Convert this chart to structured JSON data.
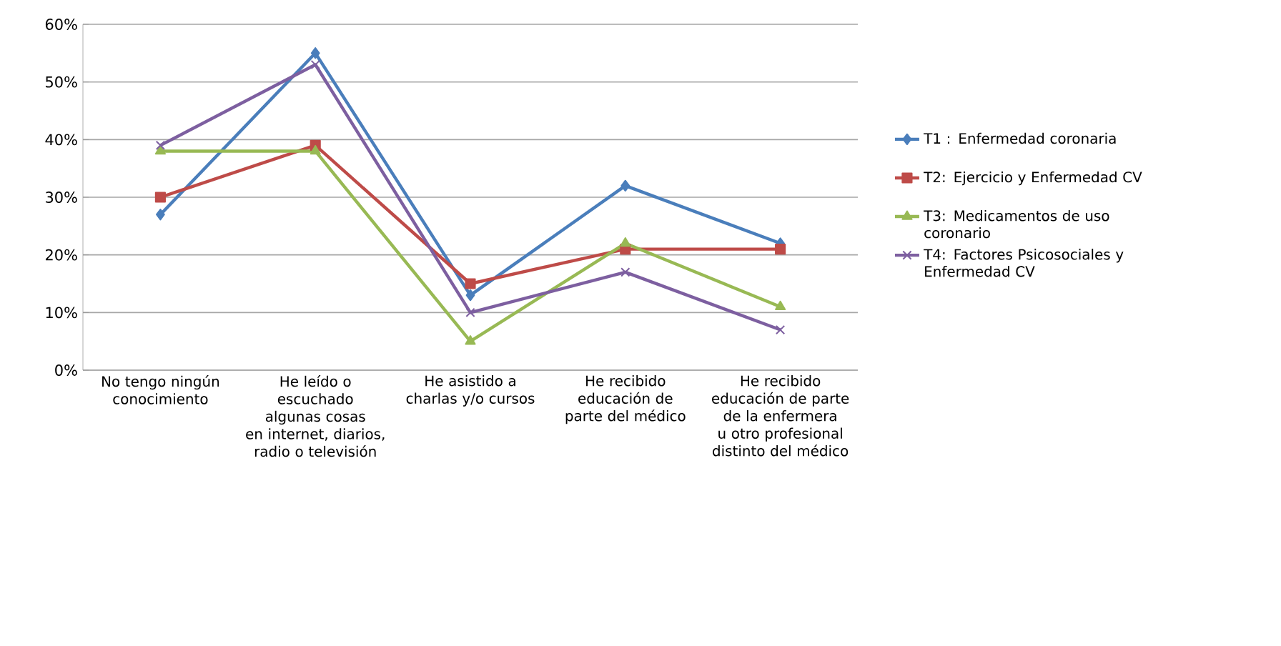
{
  "chart_data": {
    "type": "line",
    "categories": [
      "No tengo ningún conocimiento",
      "He leído o escuchado algunas cosas en internet, diarios, radio o televisión",
      "He asistido a charlas y/o cursos",
      "He recibido educación de parte del médico",
      "He recibido educación de parte de la enfermera u otro profesional distinto del médico"
    ],
    "series": [
      {
        "name": "T1 : Enfermedad coronaria",
        "color": "#4a7ebb",
        "marker": "diamond",
        "values": [
          27,
          55,
          13,
          32,
          22
        ]
      },
      {
        "name": "T2: Ejercicio y Enfermedad CV",
        "color": "#be4b48",
        "marker": "square",
        "values": [
          30,
          39,
          15,
          21,
          21
        ]
      },
      {
        "name": "T3: Medicamentos de uso coronario",
        "color": "#98b954",
        "marker": "triangle",
        "values": [
          38,
          38,
          5,
          22,
          11
        ]
      },
      {
        "name": "T4: Factores Psicosociales y Enfermedad CV",
        "color": "#7d5fa0",
        "marker": "cross",
        "values": [
          39,
          53,
          10,
          17,
          7
        ]
      }
    ],
    "ylim": [
      0,
      60
    ],
    "yticks": [
      {
        "value": 0,
        "label": "0%"
      },
      {
        "value": 10,
        "label": "10%"
      },
      {
        "value": 20,
        "label": "20%"
      },
      {
        "value": 30,
        "label": "30%"
      },
      {
        "value": 40,
        "label": "40%"
      },
      {
        "value": 50,
        "label": "50%"
      },
      {
        "value": 60,
        "label": "60%"
      }
    ],
    "grid": "y",
    "legend": "right",
    "line_style": "solid"
  }
}
